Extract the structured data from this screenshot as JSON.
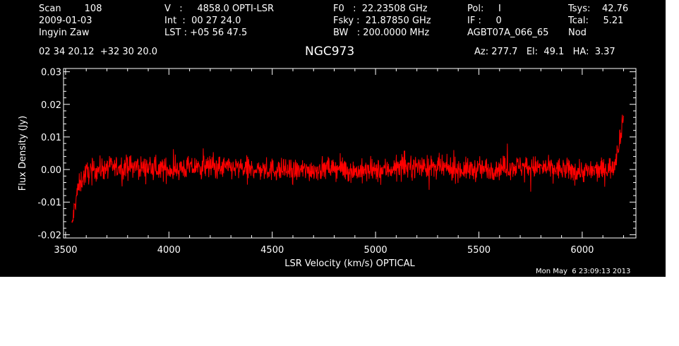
{
  "colors": {
    "background": "#000000",
    "foreground": "#ffffff",
    "trace": "#ff0000"
  },
  "header": {
    "col1": [
      "Scan        108",
      "2009-01-03",
      "Ingyin Zaw"
    ],
    "col2": [
      "V   :     4858.0 OPTI-LSR",
      "Int  :  00 27 24.0",
      "LST : +05 56 47.5"
    ],
    "col3": [
      "F0   :  22.23508 GHz",
      "Fsky :  21.87850 GHz",
      "BW   : 200.0000 MHz"
    ],
    "col4": [
      "Pol:     I",
      "IF :     0",
      "AGBT07A_066_65"
    ],
    "col5": [
      "Tsys:    42.76",
      "Tcal:     5.21",
      "Nod"
    ],
    "coords": "02 34 20.12  +32 30 20.0",
    "source": "NGC973",
    "azelha": "Az: 277.7   El:  49.1   HA:  3.37"
  },
  "timestamp": "Mon May  6 23:09:13 2013",
  "chart_data": {
    "type": "line",
    "title": "NGC973",
    "xlabel": "LSR Velocity (km/s) OPTICAL",
    "ylabel": "Flux Density (Jy)",
    "xlim": [
      3490,
      6260
    ],
    "ylim": [
      -0.021,
      0.031
    ],
    "xticks": [
      3500,
      4000,
      4500,
      5000,
      5500,
      6000
    ],
    "xtick_labels": [
      "3500",
      "4000",
      "4500",
      "5000",
      "5500",
      "6000"
    ],
    "yticks": [
      -0.02,
      -0.01,
      0.0,
      0.01,
      0.02,
      0.03
    ],
    "ytick_labels": [
      "-0.02",
      "-0.01",
      "0.00",
      "0.01",
      "0.02",
      "0.03"
    ],
    "grid": false,
    "series": [
      {
        "name": "",
        "color": "#ff0000",
        "x": [
          3530,
          3540,
          3550,
          3560,
          3580,
          3600,
          3650,
          3700,
          3800,
          3900,
          4000,
          4100,
          4200,
          4300,
          4400,
          4500,
          4600,
          4700,
          4800,
          4900,
          5000,
          5100,
          5200,
          5300,
          5400,
          5500,
          5600,
          5700,
          5800,
          5900,
          6000,
          6050,
          6100,
          6130,
          6150,
          6160,
          6170,
          6180,
          6190,
          6200
        ],
        "y": [
          -0.018,
          -0.013,
          -0.009,
          -0.006,
          -0.003,
          -0.001,
          0.0,
          0.0005,
          0.001,
          0.0005,
          0.0,
          0.0005,
          0.001,
          0.0005,
          0.0,
          0.0,
          -0.0005,
          0.0,
          0.0005,
          -0.0005,
          -0.0005,
          0.0005,
          0.001,
          0.0005,
          0.0,
          0.0,
          0.0005,
          0.001,
          0.0005,
          0.0,
          -0.0005,
          -0.0005,
          0.0,
          0.0005,
          0.001,
          0.003,
          0.006,
          0.009,
          0.013,
          0.016
        ],
        "noise_amplitude": 0.0045
      }
    ]
  }
}
